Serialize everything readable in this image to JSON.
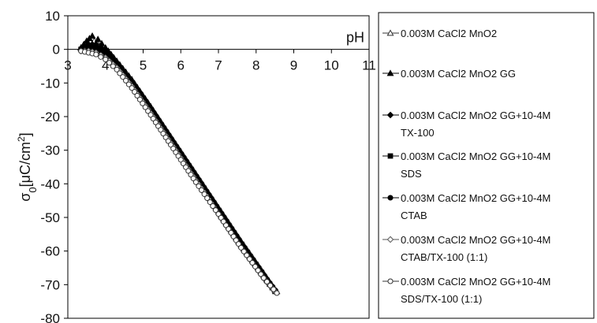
{
  "chart_data": {
    "type": "scatter",
    "xlabel": "pH",
    "ylabel": "σ0[μC/cm²]",
    "ylabel_main": "σ",
    "ylabel_sub": "0",
    "ylabel_rest": "[μC/cm",
    "ylabel_sup": "2",
    "ylabel_end": "]",
    "xlim": [
      3,
      11
    ],
    "ylim": [
      -80,
      10
    ],
    "x_ticks": [
      "3",
      "4",
      "5",
      "6",
      "7",
      "8",
      "9",
      "10",
      "11"
    ],
    "y_ticks": [
      "10",
      "0",
      "-10",
      "-20",
      "-30",
      "-40",
      "-50",
      "-60",
      "-70",
      "-80"
    ],
    "grid": false,
    "legend_position": "right",
    "series": [
      {
        "name": "0.003M CaCl2 MnO2",
        "name_lines": [
          "0.003M CaCl2 MnO2"
        ],
        "marker": "triangle-open",
        "color": "#333333",
        "x": [
          3.35,
          3.5,
          3.7,
          4.0,
          4.3,
          4.7,
          5.2,
          5.8,
          6.4,
          7.0,
          7.6,
          8.2,
          8.5
        ],
        "y": [
          0.5,
          2.0,
          2.5,
          0.0,
          -3.5,
          -9.0,
          -17.0,
          -27.0,
          -37.0,
          -47.0,
          -57.0,
          -66.5,
          -71.5
        ]
      },
      {
        "name": "0.003M CaCl2 MnO2 GG",
        "name_lines": [
          "0.003M CaCl2 MnO2 GG"
        ],
        "marker": "triangle-filled",
        "color": "#000000",
        "x": [
          3.35,
          3.5,
          3.65,
          3.8,
          4.0,
          4.3,
          4.7,
          5.2,
          5.8,
          6.4,
          7.0,
          7.6,
          8.2,
          8.55
        ],
        "y": [
          0.5,
          2.5,
          4.0,
          3.0,
          0.5,
          -3.5,
          -9.0,
          -17.0,
          -27.5,
          -37.5,
          -47.5,
          -57.5,
          -67.0,
          -72.0
        ]
      },
      {
        "name": "0.003M CaCl2 MnO2 GG+10-4M TX-100",
        "name_lines": [
          "0.003M CaCl2 MnO2 GG+10-4M",
          "TX-100"
        ],
        "marker": "diamond-filled",
        "color": "#000000",
        "x": [
          3.35,
          3.55,
          3.75,
          4.0,
          4.3,
          4.7,
          5.2,
          5.8,
          6.4,
          7.0,
          7.6,
          8.2,
          8.5
        ],
        "y": [
          0.0,
          1.5,
          1.5,
          -0.5,
          -4.0,
          -9.5,
          -17.5,
          -27.5,
          -37.5,
          -47.5,
          -57.5,
          -67.0,
          -71.5
        ]
      },
      {
        "name": "0.003M CaCl2 MnO2 GG+10-4M SDS",
        "name_lines": [
          "0.003M CaCl2 MnO2 GG+10-4M",
          "SDS"
        ],
        "marker": "square-filled",
        "color": "#000000",
        "x": [
          3.35,
          3.55,
          3.75,
          4.0,
          4.3,
          4.7,
          5.2,
          5.8,
          6.4,
          7.0,
          7.6,
          8.2,
          8.5
        ],
        "y": [
          0.0,
          1.0,
          1.0,
          -1.0,
          -4.5,
          -10.0,
          -18.0,
          -28.0,
          -38.0,
          -48.0,
          -58.0,
          -67.5,
          -72.0
        ]
      },
      {
        "name": "0.003M CaCl2 MnO2 GG+10-4M CTAB",
        "name_lines": [
          "0.003M CaCl2 MnO2 GG+10-4M",
          "CTAB"
        ],
        "marker": "circle-filled",
        "color": "#000000",
        "x": [
          3.35,
          3.55,
          3.75,
          4.0,
          4.3,
          4.7,
          5.2,
          5.8,
          6.4,
          7.0,
          7.6,
          8.2,
          8.5
        ],
        "y": [
          0.0,
          0.5,
          0.0,
          -1.5,
          -5.0,
          -10.5,
          -18.5,
          -28.5,
          -38.5,
          -48.5,
          -58.5,
          -68.0,
          -72.0
        ]
      },
      {
        "name": "0.003M CaCl2 MnO2 GG+10-4M CTAB/TX-100 (1:1)",
        "name_lines": [
          "0.003M CaCl2 MnO2 GG+10-4M",
          "CTAB/TX-100 (1:1)"
        ],
        "marker": "diamond-open",
        "color": "#555555",
        "x": [
          3.35,
          3.55,
          3.75,
          4.0,
          4.3,
          4.7,
          5.2,
          5.8,
          6.4,
          7.0,
          7.6,
          8.2,
          8.5
        ],
        "y": [
          -0.5,
          -0.5,
          -1.0,
          -2.5,
          -5.5,
          -11.0,
          -19.0,
          -29.0,
          -39.0,
          -49.0,
          -59.0,
          -68.0,
          -72.0
        ]
      },
      {
        "name": "0.003M CaCl2 MnO2 GG+10-4M SDS/TX-100 (1:1)",
        "name_lines": [
          "0.003M CaCl2 MnO2 GG+10-4M",
          "SDS/TX-100 (1:1)"
        ],
        "marker": "circle-open",
        "color": "#333333",
        "x": [
          3.35,
          3.55,
          3.75,
          4.0,
          4.3,
          4.7,
          5.2,
          5.8,
          6.4,
          7.0,
          7.6,
          8.2,
          8.55
        ],
        "y": [
          -0.5,
          -1.0,
          -1.5,
          -3.0,
          -6.0,
          -11.5,
          -19.5,
          -29.5,
          -39.5,
          -49.0,
          -59.0,
          -68.0,
          -72.5
        ]
      }
    ]
  }
}
